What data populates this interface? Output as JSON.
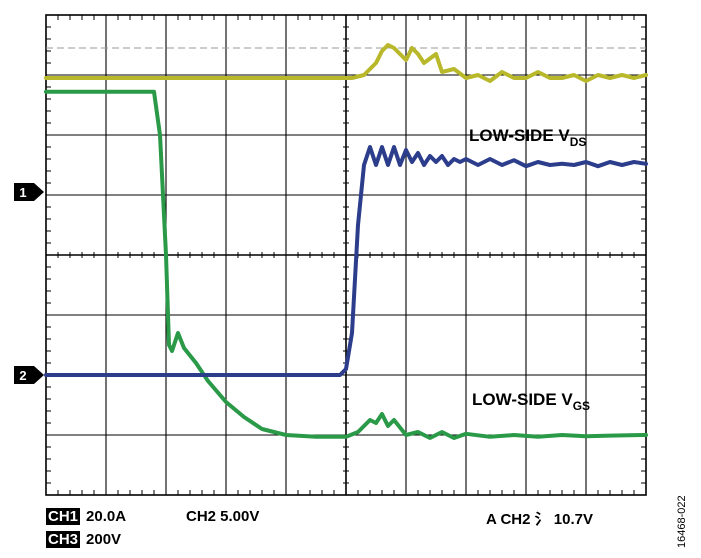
{
  "chart_data": {
    "type": "line",
    "title": "",
    "xlabel": "",
    "ylabel": "",
    "divisions": {
      "x": 10,
      "y": 8
    },
    "xlim": [
      0,
      10
    ],
    "ylim": [
      0,
      8
    ],
    "grid": true,
    "colors": {
      "ch1": "#b8b82a",
      "ch2": "#2a9a48",
      "ch3": "#2c3d8c",
      "grid": "#000000"
    },
    "series": [
      {
        "id": "ch1",
        "name": "",
        "x": [
          0,
          1,
          2,
          3,
          4,
          5,
          5.1,
          5.3,
          5.5,
          5.6,
          5.7,
          5.8,
          5.9,
          6.0,
          6.1,
          6.2,
          6.3,
          6.5,
          6.6,
          6.8,
          7.0,
          7.2,
          7.4,
          7.6,
          7.8,
          8.0,
          8.2,
          8.4,
          8.6,
          8.8,
          9.0,
          9.2,
          9.4,
          9.6,
          9.8,
          10
        ],
        "y": [
          6.95,
          6.95,
          6.95,
          6.95,
          6.95,
          6.95,
          6.95,
          7.0,
          7.2,
          7.4,
          7.5,
          7.45,
          7.35,
          7.25,
          7.45,
          7.35,
          7.2,
          7.35,
          7.05,
          7.1,
          6.95,
          7.0,
          6.9,
          7.05,
          6.95,
          6.95,
          7.05,
          6.95,
          6.95,
          7.0,
          6.9,
          7.0,
          6.95,
          7.0,
          6.95,
          7.0
        ]
      },
      {
        "id": "ch2",
        "name": "LOW-SIDE VGS",
        "x": [
          0,
          1,
          1.8,
          1.9,
          2.0,
          2.05,
          2.1,
          2.2,
          2.3,
          2.5,
          2.7,
          3.0,
          3.3,
          3.6,
          4.0,
          4.5,
          5.0,
          5.2,
          5.4,
          5.5,
          5.6,
          5.7,
          5.8,
          6.0,
          6.2,
          6.4,
          6.6,
          6.8,
          7.0,
          7.4,
          7.8,
          8.2,
          8.6,
          9.0,
          9.4,
          10
        ],
        "y": [
          6.72,
          6.72,
          6.72,
          6.0,
          4.0,
          2.5,
          2.4,
          2.7,
          2.45,
          2.2,
          1.9,
          1.55,
          1.3,
          1.1,
          1.0,
          0.97,
          0.97,
          1.05,
          1.25,
          1.2,
          1.35,
          1.15,
          1.25,
          1.0,
          1.05,
          0.95,
          1.05,
          0.95,
          1.02,
          0.97,
          1.0,
          0.97,
          1.0,
          0.98,
          0.99,
          1.0
        ]
      },
      {
        "id": "ch3",
        "name": "LOW-SIDE VDS",
        "x": [
          0,
          1,
          2,
          3,
          4,
          4.9,
          5.0,
          5.1,
          5.2,
          5.3,
          5.4,
          5.5,
          5.6,
          5.7,
          5.8,
          5.9,
          6.0,
          6.1,
          6.2,
          6.3,
          6.4,
          6.5,
          6.6,
          6.7,
          6.8,
          6.9,
          7.0,
          7.2,
          7.4,
          7.6,
          7.8,
          8.0,
          8.2,
          8.4,
          8.6,
          8.8,
          9.0,
          9.2,
          9.4,
          9.6,
          9.8,
          10
        ],
        "y": [
          2.0,
          2.0,
          2.0,
          2.0,
          2.0,
          2.0,
          2.1,
          2.7,
          4.5,
          5.5,
          5.8,
          5.5,
          5.8,
          5.5,
          5.8,
          5.5,
          5.75,
          5.55,
          5.7,
          5.5,
          5.65,
          5.55,
          5.65,
          5.5,
          5.6,
          5.55,
          5.6,
          5.5,
          5.6,
          5.5,
          5.58,
          5.48,
          5.55,
          5.5,
          5.52,
          5.5,
          5.55,
          5.48,
          5.55,
          5.5,
          5.55,
          5.52
        ]
      }
    ],
    "reference_line": {
      "y": 7.45
    },
    "ground_markers": [
      {
        "label": "1",
        "y": 5.05
      },
      {
        "label": "2",
        "y": 2.0
      }
    ],
    "annotations": [
      {
        "id": "vds",
        "main": "LOW-SIDE V",
        "sub": "DS",
        "x": 7.05,
        "y": 5.9
      },
      {
        "id": "vgs",
        "main": "LOW-SIDE V",
        "sub": "GS",
        "x": 7.1,
        "y": 1.5
      }
    ]
  },
  "footer": {
    "ch1_tag": "CH1",
    "ch1_value": "20.0A",
    "ch2_setting": "CH2 5.00V",
    "ch3_tag": "CH3",
    "ch3_value": "200V",
    "trigger": "A  CH2 ⺡ 10.7V",
    "figure_id": "16468-022"
  }
}
